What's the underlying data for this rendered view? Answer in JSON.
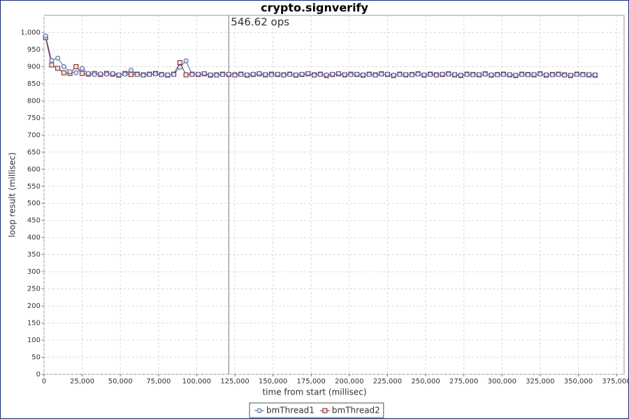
{
  "chart_data": {
    "type": "line",
    "title": "crypto.signverify",
    "x_label": "time from start (millisec)",
    "y_label": "loop result (millisec)",
    "x": [
      1000,
      5000,
      9000,
      13000,
      17000,
      21000,
      25000,
      29000,
      33000,
      37000,
      41000,
      45000,
      49000,
      53000,
      57000,
      61000,
      65000,
      69000,
      73000,
      77000,
      81000,
      85000,
      89000,
      93000,
      97000,
      101000,
      105000,
      109000,
      113000,
      117000,
      121000,
      125000,
      129000,
      133000,
      137000,
      141000,
      145000,
      149000,
      153000,
      157000,
      161000,
      165000,
      169000,
      173000,
      177000,
      181000,
      185000,
      189000,
      193000,
      197000,
      201000,
      205000,
      209000,
      213000,
      217000,
      221000,
      225000,
      229000,
      233000,
      237000,
      241000,
      245000,
      249000,
      253000,
      257000,
      261000,
      265000,
      269000,
      273000,
      277000,
      281000,
      285000,
      289000,
      293000,
      297000,
      301000,
      305000,
      309000,
      313000,
      317000,
      321000,
      325000,
      329000,
      333000,
      337000,
      341000,
      345000,
      349000,
      353000,
      357000,
      361000
    ],
    "series": [
      {
        "name": "bmThread2",
        "color": "#7a1f1f",
        "fill": "#f0e0e0",
        "marker": "square",
        "values": [
          985,
          905,
          895,
          882,
          880,
          900,
          880,
          878,
          880,
          877,
          880,
          878,
          875,
          880,
          877,
          878,
          876,
          878,
          880,
          877,
          875,
          878,
          912,
          876,
          878,
          877,
          879,
          875,
          876,
          878,
          877,
          876,
          878,
          875,
          877,
          879,
          876,
          878,
          877,
          876,
          878,
          875,
          877,
          879,
          876,
          878,
          874,
          877,
          879,
          876,
          878,
          877,
          875,
          878,
          876,
          879,
          877,
          874,
          878,
          876,
          877,
          879,
          875,
          878,
          876,
          877,
          879,
          876,
          874,
          878,
          877,
          876,
          879,
          875,
          877,
          878,
          876,
          874,
          878,
          877,
          876,
          879,
          875,
          877,
          878,
          876,
          874,
          878,
          877,
          876,
          875
        ]
      },
      {
        "name": "bmThread1",
        "color": "#4a64a8",
        "fill": "#dde6f5",
        "marker": "circle",
        "values": [
          990,
          918,
          925,
          900,
          885,
          882,
          895,
          880,
          877,
          879,
          878,
          880,
          876,
          878,
          890,
          877,
          875,
          877,
          879,
          876,
          876,
          877,
          898,
          917,
          877,
          878,
          880,
          876,
          875,
          877,
          878,
          875,
          877,
          876,
          878,
          880,
          877,
          876,
          878,
          875,
          877,
          876,
          878,
          880,
          875,
          877,
          876,
          878,
          880,
          877,
          876,
          878,
          876,
          877,
          875,
          878,
          878,
          875,
          877,
          877,
          876,
          878,
          876,
          877,
          875,
          878,
          878,
          877,
          875,
          877,
          876,
          877,
          878,
          876,
          876,
          877,
          877,
          875,
          877,
          876,
          877,
          878,
          876,
          876,
          877,
          875,
          875,
          877,
          876,
          877,
          876
        ]
      }
    ],
    "markers": [
      {
        "x": 121000,
        "label": "546.62 ops"
      }
    ],
    "xlim": [
      0,
      380000
    ],
    "xticks": [
      0,
      {
        "value": 25000,
        "label": "25,000"
      },
      {
        "value": 50000,
        "label": "50,000"
      },
      {
        "value": 75000,
        "label": "75,000"
      },
      {
        "value": 100000,
        "label": "100,000"
      },
      {
        "value": 125000,
        "label": "125,000"
      },
      {
        "value": 150000,
        "label": "150,000"
      },
      {
        "value": 175000,
        "label": "175,000"
      },
      {
        "value": 200000,
        "label": "200,000"
      },
      {
        "value": 225000,
        "label": "225,000"
      },
      {
        "value": 250000,
        "label": "250,000"
      },
      {
        "value": 275000,
        "label": "275,000"
      },
      {
        "value": 300000,
        "label": "300,000"
      },
      {
        "value": 325000,
        "label": "325,000"
      },
      {
        "value": 350000,
        "label": "350,000"
      },
      {
        "value": 375000,
        "label": "375,000"
      }
    ],
    "ylim": [
      0,
      1050
    ],
    "yticks": [
      0,
      50,
      100,
      150,
      200,
      250,
      300,
      350,
      400,
      450,
      500,
      550,
      600,
      650,
      700,
      750,
      800,
      850,
      900,
      950,
      {
        "value": 1000,
        "label": "1,000"
      }
    ],
    "grid": true,
    "legend": "bottom"
  }
}
